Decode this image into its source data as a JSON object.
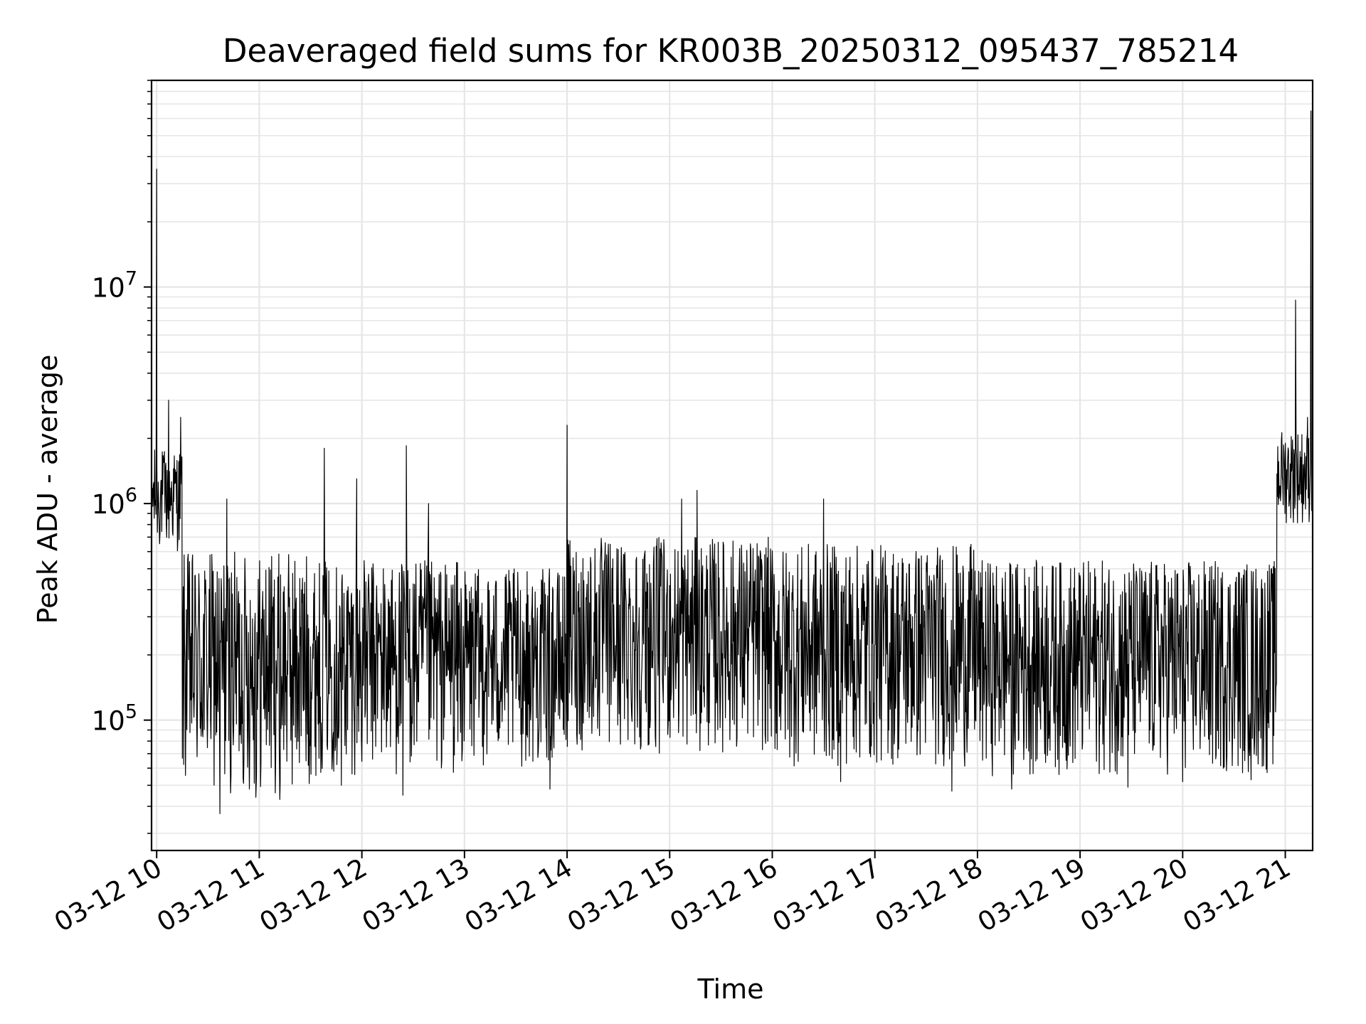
{
  "chart_data": {
    "type": "line",
    "title": "Deaveraged field sums for KR003B_20250312_095437_785214",
    "xlabel": "Time",
    "ylabel": "Peak ADU - average",
    "xscale": "time",
    "yscale": "log",
    "grid": true,
    "x_range": [
      "2025-03-12 09:57",
      "2025-03-12 21:16"
    ],
    "ylim": [
      25000,
      90000000
    ],
    "x_ticks": [
      "03-12 10",
      "03-12 11",
      "03-12 12",
      "03-12 13",
      "03-12 14",
      "03-12 15",
      "03-12 16",
      "03-12 17",
      "03-12 18",
      "03-12 19",
      "03-12 20",
      "03-12 21"
    ],
    "y_ticks": [
      {
        "value": 100000,
        "base": "10",
        "exp": "5"
      },
      {
        "value": 1000000,
        "base": "10",
        "exp": "6"
      },
      {
        "value": 10000000,
        "base": "10",
        "exp": "7"
      }
    ],
    "series": [
      {
        "color": "#000000",
        "description": "Noisy trace; baseline per time segment with notable spikes",
        "segments": [
          {
            "start": "2025-03-12 09:57",
            "end": "2025-03-12 10:15",
            "low": 600000,
            "high": 1800000
          },
          {
            "start": "2025-03-12 10:15",
            "end": "2025-03-12 11:30",
            "low": 45000,
            "high": 600000
          },
          {
            "start": "2025-03-12 11:30",
            "end": "2025-03-12 13:00",
            "low": 55000,
            "high": 550000
          },
          {
            "start": "2025-03-12 13:00",
            "end": "2025-03-12 14:00",
            "low": 60000,
            "high": 500000
          },
          {
            "start": "2025-03-12 14:00",
            "end": "2025-03-12 16:00",
            "low": 70000,
            "high": 700000
          },
          {
            "start": "2025-03-12 16:00",
            "end": "2025-03-12 18:00",
            "low": 60000,
            "high": 650000
          },
          {
            "start": "2025-03-12 18:00",
            "end": "2025-03-12 20:55",
            "low": 55000,
            "high": 550000
          },
          {
            "start": "2025-03-12 20:55",
            "end": "2025-03-12 21:16",
            "low": 800000,
            "high": 2200000
          }
        ],
        "spikes": [
          {
            "x": "2025-03-12 10:00",
            "y": 35000000
          },
          {
            "x": "2025-03-12 10:07",
            "y": 3000000
          },
          {
            "x": "2025-03-12 10:14",
            "y": 2500000
          },
          {
            "x": "2025-03-12 10:41",
            "y": 1050000
          },
          {
            "x": "2025-03-12 11:38",
            "y": 1800000
          },
          {
            "x": "2025-03-12 11:57",
            "y": 1300000
          },
          {
            "x": "2025-03-12 12:26",
            "y": 1850000
          },
          {
            "x": "2025-03-12 12:39",
            "y": 1000000
          },
          {
            "x": "2025-03-12 14:00",
            "y": 2300000
          },
          {
            "x": "2025-03-12 15:07",
            "y": 1050000
          },
          {
            "x": "2025-03-12 15:16",
            "y": 1150000
          },
          {
            "x": "2025-03-12 16:30",
            "y": 1050000
          },
          {
            "x": "2025-03-12 21:06",
            "y": 8700000
          },
          {
            "x": "2025-03-12 21:13",
            "y": 2500000
          },
          {
            "x": "2025-03-12 21:15",
            "y": 65000000
          }
        ],
        "dips": [
          {
            "x": "2025-03-12 10:37",
            "y": 37000
          },
          {
            "x": "2025-03-12 10:58",
            "y": 44000
          },
          {
            "x": "2025-03-12 11:12",
            "y": 43000
          },
          {
            "x": "2025-03-12 11:48",
            "y": 50000
          },
          {
            "x": "2025-03-12 12:24",
            "y": 45000
          },
          {
            "x": "2025-03-12 13:50",
            "y": 48000
          },
          {
            "x": "2025-03-12 16:40",
            "y": 52000
          },
          {
            "x": "2025-03-12 17:45",
            "y": 47000
          },
          {
            "x": "2025-03-12 18:20",
            "y": 48000
          },
          {
            "x": "2025-03-12 19:28",
            "y": 49000
          },
          {
            "x": "2025-03-12 20:00",
            "y": 52000
          },
          {
            "x": "2025-03-12 20:40",
            "y": 53000
          }
        ]
      }
    ]
  }
}
